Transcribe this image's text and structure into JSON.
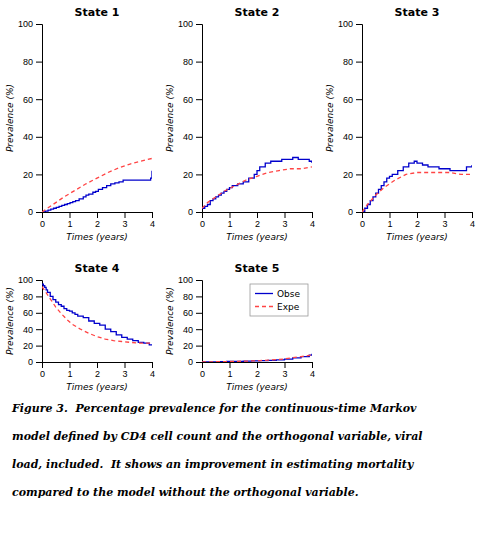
{
  "chart_data": [
    {
      "type": "line",
      "title": "State 1",
      "xlabel": "Times (years)",
      "ylabel": "Prevalence (%)",
      "xlim": [
        0,
        4
      ],
      "ylim": [
        0,
        100
      ],
      "xticks": [
        0,
        1,
        2,
        3,
        4
      ],
      "yticks": [
        0,
        20,
        40,
        60,
        80,
        100
      ],
      "grid": false,
      "series": [
        {
          "type": "step",
          "line_style": "solid",
          "color": "#0000cc",
          "x": [
            0,
            0.12,
            0.22,
            0.32,
            0.42,
            0.52,
            0.62,
            0.72,
            0.82,
            0.92,
            1.02,
            1.12,
            1.22,
            1.35,
            1.5,
            1.6,
            1.7,
            1.85,
            1.95,
            2.05,
            2.2,
            2.35,
            2.5,
            2.65,
            2.8,
            2.95,
            3.1,
            3.2,
            3.3,
            3.5,
            3.7,
            3.9,
            3.95,
            4.0
          ],
          "values": [
            0,
            0.5,
            1.0,
            1.5,
            2.0,
            2.5,
            3.0,
            3.5,
            4.0,
            4.5,
            5.0,
            5.5,
            6.0,
            7.0,
            8.0,
            9.0,
            9.5,
            10.5,
            11.0,
            12.0,
            13.0,
            14.0,
            15.0,
            15.5,
            16.0,
            17.0,
            17.0,
            17.0,
            17.0,
            17.0,
            17.0,
            17.0,
            18.0,
            22.0
          ]
        },
        {
          "type": "line",
          "line_style": "dashed",
          "color": "#ff4444",
          "x": [
            0,
            0.2,
            0.5,
            0.8,
            1.2,
            1.6,
            2.0,
            2.4,
            2.8,
            3.2,
            3.6,
            4.0
          ],
          "values": [
            0,
            2.0,
            5.0,
            8.0,
            11.5,
            15.0,
            18.0,
            21.0,
            23.5,
            25.5,
            27.0,
            28.5
          ]
        }
      ]
    },
    {
      "type": "line",
      "title": "State 2",
      "xlabel": "Times (years)",
      "ylabel": "Prevalence (%)",
      "xlim": [
        0,
        4
      ],
      "ylim": [
        0,
        100
      ],
      "xticks": [
        0,
        1,
        2,
        3,
        4
      ],
      "yticks": [
        0,
        20,
        40,
        60,
        80,
        100
      ],
      "grid": false,
      "series": [
        {
          "type": "step",
          "line_style": "solid",
          "color": "#0000cc",
          "x": [
            0,
            0.1,
            0.2,
            0.3,
            0.4,
            0.5,
            0.6,
            0.7,
            0.8,
            0.9,
            1.0,
            1.1,
            1.3,
            1.5,
            1.7,
            1.9,
            2.0,
            2.1,
            2.3,
            2.5,
            2.7,
            2.9,
            3.1,
            3.3,
            3.5,
            3.7,
            3.9,
            4.0
          ],
          "values": [
            2,
            3,
            4,
            6,
            7,
            8,
            9,
            10,
            11,
            12,
            13,
            14,
            15,
            16,
            18,
            20,
            22,
            24,
            26,
            27,
            27,
            28,
            28,
            29,
            28,
            28,
            27,
            26
          ]
        },
        {
          "type": "line",
          "line_style": "dashed",
          "color": "#ff4444",
          "x": [
            0,
            0.2,
            0.5,
            0.8,
            1.2,
            1.6,
            2.0,
            2.4,
            2.8,
            3.2,
            3.6,
            4.0
          ],
          "values": [
            2,
            5,
            8,
            11,
            14,
            17,
            19,
            21,
            22,
            23,
            23,
            24
          ]
        }
      ]
    },
    {
      "type": "line",
      "title": "State 3",
      "xlabel": "Times (years)",
      "ylabel": "Prevalence (%)",
      "xlim": [
        0,
        4
      ],
      "ylim": [
        0,
        100
      ],
      "xticks": [
        0,
        1,
        2,
        3,
        4
      ],
      "yticks": [
        0,
        20,
        40,
        60,
        80,
        100
      ],
      "grid": false,
      "series": [
        {
          "type": "step",
          "line_style": "solid",
          "color": "#0000cc",
          "x": [
            0,
            0.1,
            0.2,
            0.3,
            0.4,
            0.5,
            0.6,
            0.7,
            0.8,
            0.9,
            1.0,
            1.1,
            1.3,
            1.5,
            1.7,
            1.9,
            2.0,
            2.2,
            2.4,
            2.6,
            2.8,
            3.0,
            3.2,
            3.4,
            3.6,
            3.8,
            4.0
          ],
          "values": [
            0,
            2,
            4,
            6,
            8,
            10,
            12,
            14,
            16,
            18,
            19,
            20,
            22,
            24,
            26,
            27,
            26,
            25,
            24,
            24,
            23,
            23,
            22,
            22,
            22,
            24,
            25
          ]
        },
        {
          "type": "line",
          "line_style": "dashed",
          "color": "#ff4444",
          "x": [
            0,
            0.2,
            0.5,
            0.8,
            1.2,
            1.6,
            2.0,
            2.4,
            2.8,
            3.2,
            3.6,
            4.0
          ],
          "values": [
            0,
            4,
            9,
            13,
            17,
            20,
            21,
            21,
            21,
            21,
            20,
            20
          ]
        }
      ]
    },
    {
      "type": "line",
      "title": "State 4",
      "xlabel": "Times (years)",
      "ylabel": "Prevalence (%)",
      "xlim": [
        0,
        4
      ],
      "ylim": [
        0,
        100
      ],
      "xticks": [
        0,
        1,
        2,
        3,
        4
      ],
      "yticks": [
        0,
        20,
        40,
        60,
        80,
        100
      ],
      "grid": false,
      "series": [
        {
          "type": "step",
          "line_style": "solid",
          "color": "#0000cc",
          "x": [
            0,
            0.05,
            0.1,
            0.15,
            0.2,
            0.3,
            0.4,
            0.5,
            0.6,
            0.7,
            0.8,
            0.9,
            1.0,
            1.1,
            1.2,
            1.3,
            1.5,
            1.7,
            1.9,
            2.1,
            2.3,
            2.5,
            2.7,
            2.9,
            3.1,
            3.3,
            3.5,
            3.7,
            3.9,
            4.0
          ],
          "values": [
            95,
            93,
            91,
            88,
            85,
            80,
            76,
            73,
            70,
            68,
            65,
            63,
            62,
            60,
            58,
            56,
            54,
            50,
            47,
            45,
            40,
            37,
            33,
            30,
            28,
            26,
            24,
            23,
            21,
            20
          ]
        },
        {
          "type": "line",
          "line_style": "dashed",
          "color": "#ff4444",
          "x": [
            0,
            0.1,
            0.2,
            0.3,
            0.4,
            0.5,
            0.7,
            0.9,
            1.1,
            1.4,
            1.7,
            2.0,
            2.3,
            2.6,
            2.9,
            3.2,
            3.6,
            4.0
          ],
          "values": [
            92,
            87,
            82,
            77,
            72,
            67,
            59,
            52,
            46,
            40,
            35,
            31,
            28,
            26,
            25,
            24,
            23,
            23
          ]
        }
      ]
    },
    {
      "type": "line",
      "title": "State 5",
      "xlabel": "Times (years)",
      "ylabel": "Prevalence (%)",
      "xlim": [
        0,
        4
      ],
      "ylim": [
        0,
        100
      ],
      "xticks": [
        0,
        1,
        2,
        3,
        4
      ],
      "yticks": [
        0,
        20,
        40,
        60,
        80,
        100
      ],
      "grid": false,
      "legend": "upper right",
      "series": [
        {
          "name": "Obse",
          "type": "step",
          "line_style": "solid",
          "color": "#0000cc",
          "x": [
            0,
            0.3,
            0.6,
            0.9,
            1.2,
            1.5,
            1.8,
            2.1,
            2.4,
            2.7,
            3.0,
            3.3,
            3.6,
            3.9,
            4.0
          ],
          "values": [
            0,
            0.2,
            0.4,
            0.6,
            0.8,
            1.0,
            1.3,
            1.6,
            2.0,
            2.5,
            3.5,
            5.0,
            6.5,
            8.5,
            10.0
          ]
        },
        {
          "name": "Expe",
          "type": "line",
          "line_style": "dashed",
          "color": "#ff4444",
          "x": [
            0,
            0.3,
            0.6,
            0.9,
            1.2,
            1.5,
            1.8,
            2.1,
            2.4,
            2.7,
            3.0,
            3.3,
            3.6,
            3.9,
            4.0
          ],
          "values": [
            0,
            0.15,
            0.35,
            0.55,
            0.75,
            1.0,
            1.3,
            1.7,
            2.2,
            2.8,
            3.8,
            5.2,
            6.5,
            8.0,
            8.5
          ]
        }
      ]
    }
  ],
  "caption": [
    "Figure 3.  Percentage prevalence for the continuous-time Markov",
    "model defined by CD4 cell count and the orthogonal variable, viral",
    "load, included.  It shows an improvement in estimating mortality",
    "compared to the model without the orthogonal variable."
  ]
}
